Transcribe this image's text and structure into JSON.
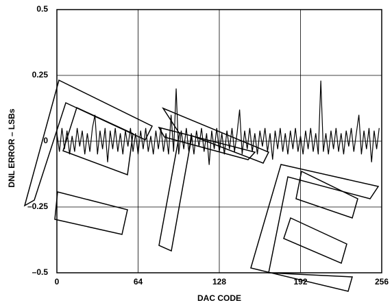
{
  "chart_data": {
    "type": "line",
    "x": [
      0,
      2,
      4,
      6,
      8,
      10,
      12,
      14,
      16,
      18,
      20,
      22,
      24,
      26,
      28,
      30,
      32,
      34,
      36,
      38,
      40,
      42,
      44,
      46,
      48,
      50,
      52,
      54,
      56,
      58,
      60,
      62,
      64,
      66,
      68,
      70,
      72,
      74,
      76,
      78,
      80,
      82,
      84,
      86,
      88,
      90,
      92,
      94,
      96,
      98,
      100,
      102,
      104,
      106,
      108,
      110,
      112,
      114,
      116,
      118,
      120,
      122,
      124,
      126,
      128,
      130,
      132,
      134,
      136,
      138,
      140,
      142,
      144,
      146,
      148,
      150,
      152,
      154,
      156,
      158,
      160,
      162,
      164,
      166,
      168,
      170,
      172,
      174,
      176,
      178,
      180,
      182,
      184,
      186,
      188,
      190,
      192,
      194,
      196,
      198,
      200,
      202,
      204,
      206,
      208,
      210,
      212,
      214,
      216,
      218,
      220,
      222,
      224,
      226,
      228,
      230,
      232,
      234,
      236,
      238,
      240,
      242,
      244,
      246,
      248,
      250,
      252,
      254
    ],
    "values": [
      0.03,
      -0.04,
      0.05,
      -0.03,
      0.04,
      -0.05,
      0.02,
      -0.04,
      0.05,
      -0.02,
      0.04,
      -0.05,
      0.03,
      -0.04,
      0.05,
      0.1,
      -0.05,
      0.04,
      -0.03,
      0.05,
      -0.08,
      0.04,
      -0.03,
      0.05,
      -0.04,
      0.03,
      -0.05,
      0.04,
      -0.02,
      0.05,
      -0.04,
      0.03,
      -0.05,
      0.04,
      -0.03,
      0.05,
      -0.04,
      0.02,
      -0.05,
      0.04,
      -0.03,
      0.05,
      -0.04,
      0.03,
      -0.05,
      0.1,
      -0.04,
      0.2,
      -0.05,
      0.04,
      -0.03,
      0.05,
      -0.04,
      0.03,
      -0.05,
      0.04,
      -0.02,
      0.05,
      -0.04,
      0.03,
      -0.09,
      0.04,
      -0.03,
      0.05,
      -0.04,
      0.03,
      -0.05,
      0.04,
      -0.03,
      0.05,
      -0.04,
      0.03,
      0.12,
      -0.05,
      0.04,
      -0.03,
      0.05,
      -0.04,
      0.03,
      -0.05,
      0.04,
      -0.02,
      0.05,
      -0.04,
      0.03,
      -0.07,
      0.04,
      -0.03,
      0.05,
      -0.04,
      0.03,
      -0.05,
      0.04,
      -0.03,
      0.05,
      -0.04,
      0.02,
      -0.05,
      0.04,
      -0.03,
      0.05,
      -0.04,
      0.03,
      -0.05,
      0.23,
      -0.04,
      0.03,
      -0.05,
      0.04,
      -0.03,
      0.05,
      -0.04,
      0.03,
      -0.05,
      0.04,
      -0.02,
      0.05,
      -0.04,
      0.03,
      0.1,
      -0.05,
      0.04,
      -0.03,
      0.05,
      -0.08,
      0.04,
      -0.03,
      0.05
    ],
    "color": "#000000",
    "xlabel": "DAC CODE",
    "ylabel": "DNL ERROR – LSBs",
    "xlim": [
      0,
      256
    ],
    "xticks": [
      0,
      64,
      128,
      192,
      256
    ],
    "ylim": [
      -0.5,
      0.5
    ],
    "yticks": [
      {
        "value": -0.5,
        "label": "–0.5"
      },
      {
        "value": -0.25,
        "label": "–0.25"
      },
      0,
      0.25,
      0.5
    ],
    "grid": true
  }
}
